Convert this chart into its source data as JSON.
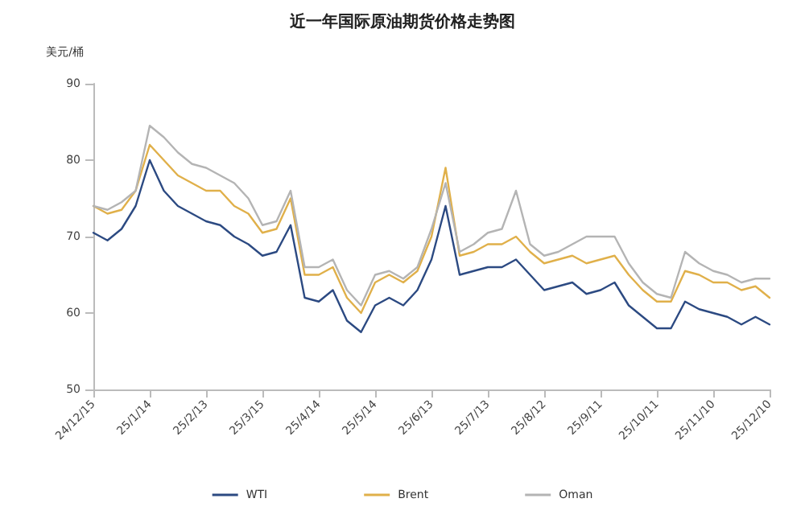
{
  "chart_data": {
    "type": "line",
    "title": "近一年国际原油期货价格走势图",
    "ylabel": "美元/桶",
    "categories": [
      "24/12/15",
      null,
      null,
      null,
      "25/1/14",
      null,
      null,
      null,
      "25/2/13",
      null,
      null,
      null,
      "25/3/15",
      null,
      null,
      null,
      "25/4/14",
      null,
      null,
      null,
      "25/5/14",
      null,
      null,
      null,
      "25/6/13",
      null,
      null,
      null,
      "25/7/13",
      null,
      null,
      null,
      "25/8/12",
      null,
      null,
      null,
      "25/9/11",
      null,
      null,
      null,
      "25/10/11",
      null,
      null,
      null,
      "25/11/10",
      null,
      null,
      null,
      "25/12/10"
    ],
    "series": [
      {
        "name": "WTI",
        "color": "#2c4a82",
        "values": [
          70.5,
          69.5,
          71,
          74,
          80,
          76,
          74,
          73,
          72,
          71.5,
          70,
          69,
          67.5,
          68,
          71.5,
          62,
          61.5,
          63,
          59,
          57.5,
          61,
          62,
          61,
          63,
          67,
          74,
          65,
          65.5,
          66,
          66,
          67,
          65,
          63,
          63.5,
          64,
          62.5,
          63,
          64,
          61,
          59.5,
          58,
          58,
          61.5,
          60.5,
          60,
          59.5,
          58.5,
          59.5,
          58.5
        ]
      },
      {
        "name": "Brent",
        "color": "#e0b04a",
        "values": [
          74,
          73,
          73.5,
          76,
          82,
          80,
          78,
          77,
          76,
          76,
          74,
          73,
          70.5,
          71,
          75,
          65,
          65,
          66,
          62,
          60,
          64,
          65,
          64,
          65.5,
          70,
          79,
          67.5,
          68,
          69,
          69,
          70,
          68,
          66.5,
          67,
          67.5,
          66.5,
          67,
          67.5,
          65,
          63,
          61.5,
          61.5,
          65.5,
          65,
          64,
          64,
          63,
          63.5,
          62
        ]
      },
      {
        "name": "Oman",
        "color": "#b4b4b4",
        "values": [
          74,
          73.5,
          74.5,
          76,
          84.5,
          83,
          81,
          79.5,
          79,
          78,
          77,
          75,
          71.5,
          72,
          76,
          66,
          66,
          67,
          63,
          61,
          65,
          65.5,
          64.5,
          66,
          71,
          77,
          68,
          69,
          70.5,
          71,
          76,
          69,
          67.5,
          68,
          69,
          70,
          70,
          70,
          66.5,
          64,
          62.5,
          62,
          68,
          66.5,
          65.5,
          65,
          64,
          64.5,
          64.5
        ]
      }
    ],
    "ylim": [
      50,
      90
    ],
    "yticks": [
      50,
      60,
      70,
      80,
      90
    ],
    "grid": false,
    "legend": "bottom",
    "marker": "none",
    "line_style": "solid"
  }
}
